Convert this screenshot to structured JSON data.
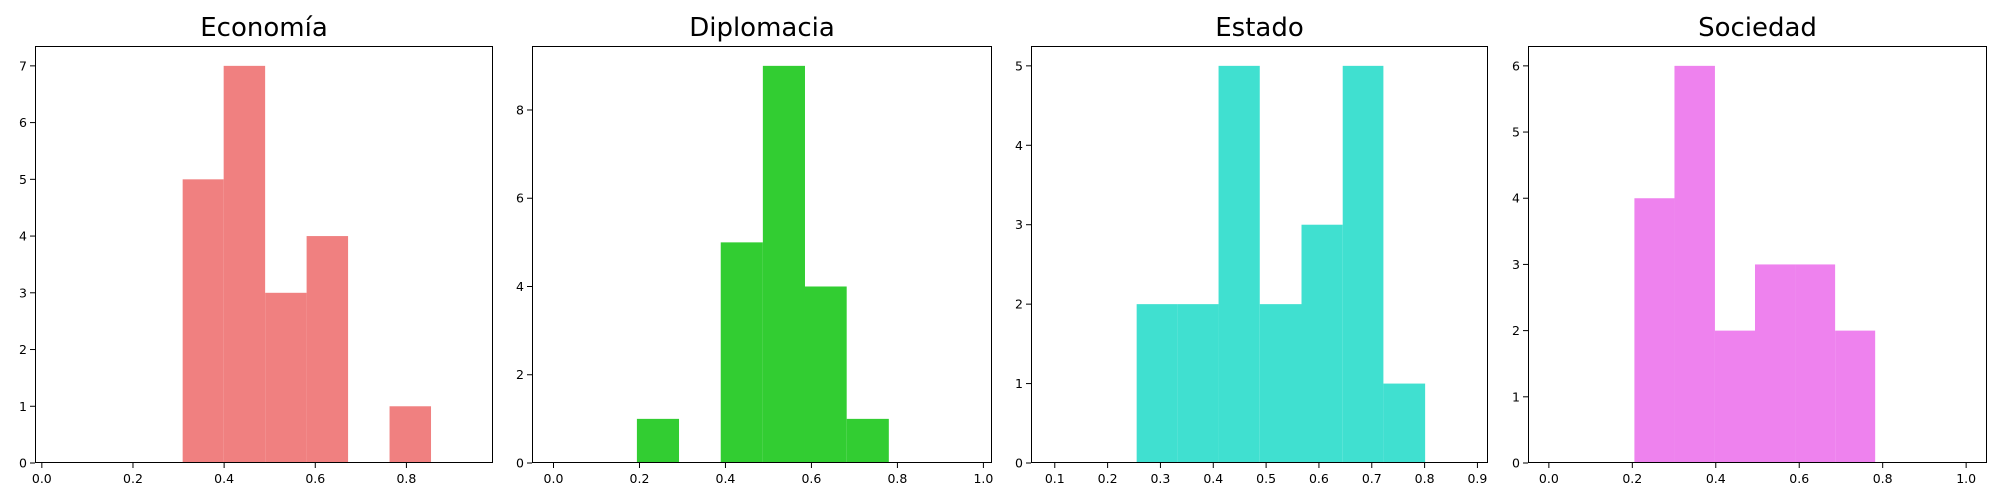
{
  "chart_data": [
    {
      "type": "bar",
      "title": "Economía",
      "color": "#f08080",
      "xlim": [
        -0.015,
        0.99
      ],
      "ylim": [
        0,
        7.35
      ],
      "xticks": [
        0.0,
        0.2,
        0.4,
        0.6,
        0.8
      ],
      "xtick_labels": [
        "0.0",
        "0.2",
        "0.4",
        "0.6",
        "0.8"
      ],
      "yticks": [
        0,
        1,
        2,
        3,
        4,
        5,
        6,
        7
      ],
      "ytick_labels": [
        "0",
        "1",
        "2",
        "3",
        "4",
        "5",
        "6",
        "7"
      ],
      "bins": [
        {
          "x0": 0.309,
          "x1": 0.399,
          "value": 5
        },
        {
          "x0": 0.399,
          "x1": 0.49,
          "value": 7
        },
        {
          "x0": 0.49,
          "x1": 0.581,
          "value": 3
        },
        {
          "x0": 0.581,
          "x1": 0.672,
          "value": 4
        },
        {
          "x0": 0.672,
          "x1": 0.763,
          "value": 0
        },
        {
          "x0": 0.763,
          "x1": 0.854,
          "value": 1
        }
      ]
    },
    {
      "type": "bar",
      "title": "Diplomacia",
      "color": "#32cd32",
      "xlim": [
        -0.05,
        1.02
      ],
      "ylim": [
        0,
        9.45
      ],
      "xticks": [
        0.0,
        0.2,
        0.4,
        0.6,
        0.8,
        1.0
      ],
      "xtick_labels": [
        "0.0",
        "0.2",
        "0.4",
        "0.6",
        "0.8",
        "1.0"
      ],
      "yticks": [
        0,
        2,
        4,
        6,
        8
      ],
      "ytick_labels": [
        "0",
        "2",
        "4",
        "6",
        "8"
      ],
      "bins": [
        {
          "x0": 0.194,
          "x1": 0.292,
          "value": 1
        },
        {
          "x0": 0.292,
          "x1": 0.389,
          "value": 0
        },
        {
          "x0": 0.389,
          "x1": 0.487,
          "value": 5
        },
        {
          "x0": 0.487,
          "x1": 0.585,
          "value": 9
        },
        {
          "x0": 0.585,
          "x1": 0.682,
          "value": 4
        },
        {
          "x0": 0.682,
          "x1": 0.78,
          "value": 1
        }
      ]
    },
    {
      "type": "bar",
      "title": "Estado",
      "color": "#40e0d0",
      "xlim": [
        0.055,
        0.92
      ],
      "ylim": [
        0,
        5.25
      ],
      "xticks": [
        0.1,
        0.2,
        0.3,
        0.4,
        0.5,
        0.6,
        0.7,
        0.8,
        0.9
      ],
      "xtick_labels": [
        "0.1",
        "0.2",
        "0.3",
        "0.4",
        "0.5",
        "0.6",
        "0.7",
        "0.8",
        "0.9"
      ],
      "yticks": [
        0,
        1,
        2,
        3,
        4,
        5
      ],
      "ytick_labels": [
        "0",
        "1",
        "2",
        "3",
        "4",
        "5"
      ],
      "bins": [
        {
          "x0": 0.255,
          "x1": 0.333,
          "value": 2
        },
        {
          "x0": 0.333,
          "x1": 0.41,
          "value": 2
        },
        {
          "x0": 0.41,
          "x1": 0.488,
          "value": 5
        },
        {
          "x0": 0.488,
          "x1": 0.567,
          "value": 2
        },
        {
          "x0": 0.567,
          "x1": 0.645,
          "value": 3
        },
        {
          "x0": 0.645,
          "x1": 0.722,
          "value": 5
        },
        {
          "x0": 0.722,
          "x1": 0.801,
          "value": 1
        }
      ]
    },
    {
      "type": "bar",
      "title": "Sociedad",
      "color": "#ee82ee",
      "xlim": [
        -0.05,
        1.05
      ],
      "ylim": [
        0,
        6.3
      ],
      "xticks": [
        0.0,
        0.2,
        0.4,
        0.6,
        0.8,
        1.0
      ],
      "xtick_labels": [
        "0.0",
        "0.2",
        "0.4",
        "0.6",
        "0.8",
        "1.0"
      ],
      "yticks": [
        0,
        1,
        2,
        3,
        4,
        5,
        6
      ],
      "ytick_labels": [
        "0",
        "1",
        "2",
        "3",
        "4",
        "5",
        "6"
      ],
      "bins": [
        {
          "x0": 0.205,
          "x1": 0.301,
          "value": 4
        },
        {
          "x0": 0.301,
          "x1": 0.398,
          "value": 6
        },
        {
          "x0": 0.398,
          "x1": 0.494,
          "value": 2
        },
        {
          "x0": 0.494,
          "x1": 0.59,
          "value": 3
        },
        {
          "x0": 0.59,
          "x1": 0.686,
          "value": 3
        },
        {
          "x0": 0.686,
          "x1": 0.782,
          "value": 2
        }
      ]
    }
  ]
}
